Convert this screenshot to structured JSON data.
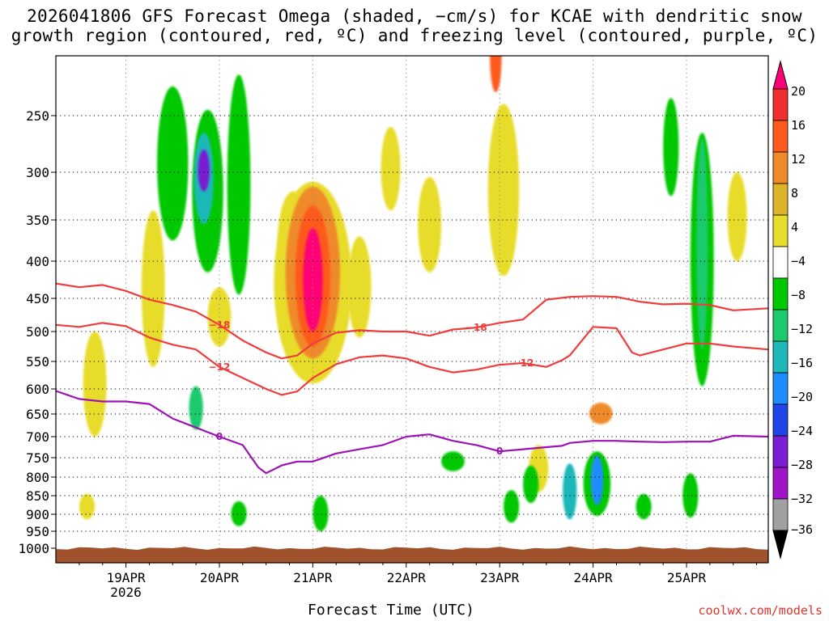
{
  "chart_data": {
    "type": "heatmap",
    "title_lines": [
      "2026041806 GFS Forecast Omega (shaded, −cm/s) for KCAE with dendritic snow",
      "growth region (contoured, red, ºC) and freezing level (contoured, purple, ºC)"
    ],
    "xlabel": "Forecast Time (UTC)",
    "credit": "coolwx.com/models",
    "x_unit": "hours after 2026-04-18 06Z",
    "xlim": [
      0,
      183
    ],
    "x_ticks": [
      {
        "hour": 18,
        "label": "19APR",
        "sublabel": "2026"
      },
      {
        "hour": 42,
        "label": "20APR"
      },
      {
        "hour": 66,
        "label": "21APR"
      },
      {
        "hour": 90,
        "label": "22APR"
      },
      {
        "hour": 114,
        "label": "23APR"
      },
      {
        "hour": 138,
        "label": "24APR"
      },
      {
        "hour": 162,
        "label": "25APR"
      }
    ],
    "y_ticks": [
      250,
      300,
      350,
      400,
      450,
      500,
      550,
      600,
      650,
      700,
      750,
      800,
      850,
      900,
      950,
      1000
    ],
    "ylim": [
      200,
      1025
    ],
    "colorbar": {
      "labels": [
        "20",
        "16",
        "12",
        "8",
        "4",
        "−4",
        "−8",
        "−12",
        "−16",
        "−20",
        "−24",
        "−28",
        "−32",
        "−36"
      ],
      "colors": [
        "#ff0077",
        "#ef2f2f",
        "#ff5a1e",
        "#ee8a2c",
        "#dcb42a",
        "#e8dc2c",
        "#ffffff",
        "#00c800",
        "#1cc96c",
        "#1eb8b8",
        "#1e8cff",
        "#1e46e6",
        "#7a1ed2",
        "#a014c8",
        "#a0a0a0",
        "#000000"
      ]
    },
    "contours": [
      {
        "name": "-18C",
        "label": "−18",
        "color": "#f03c3c",
        "x": [
          0,
          6,
          12,
          18,
          24,
          30,
          36,
          42,
          48,
          54,
          58,
          62,
          66,
          72,
          78,
          84,
          90,
          96,
          102,
          108,
          114,
          120,
          126,
          132,
          138,
          144,
          150,
          156,
          162,
          168,
          174,
          183
        ],
        "p": [
          430,
          435,
          432,
          440,
          452,
          460,
          470,
          490,
          515,
          535,
          545,
          540,
          520,
          502,
          498,
          500,
          500,
          507,
          497,
          494,
          487,
          482,
          452,
          448,
          447,
          448,
          455,
          459,
          458,
          460,
          468,
          465
        ]
      },
      {
        "name": "-12C",
        "label": "−12",
        "color": "#f03c3c",
        "x": [
          0,
          6,
          12,
          18,
          24,
          30,
          36,
          42,
          48,
          54,
          58,
          62,
          66,
          72,
          78,
          84,
          90,
          96,
          102,
          108,
          114,
          120,
          126,
          130,
          132,
          138,
          144,
          148,
          150,
          156,
          162,
          168,
          174,
          183
        ],
        "p": [
          490,
          493,
          487,
          492,
          510,
          522,
          530,
          560,
          580,
          600,
          612,
          605,
          580,
          555,
          543,
          540,
          545,
          560,
          570,
          565,
          556,
          553,
          560,
          548,
          540,
          493,
          495,
          535,
          540,
          530,
          520,
          520,
          525,
          530
        ]
      },
      {
        "name": "0C",
        "label": "0",
        "color": "#9c12b4",
        "x": [
          0,
          6,
          12,
          18,
          24,
          30,
          36,
          42,
          48,
          52,
          54,
          58,
          62,
          66,
          72,
          78,
          84,
          90,
          96,
          102,
          108,
          114,
          120,
          126,
          130,
          132,
          138,
          144,
          150,
          156,
          162,
          168,
          174,
          183
        ],
        "p": [
          604,
          620,
          625,
          625,
          630,
          660,
          680,
          700,
          720,
          775,
          790,
          770,
          760,
          760,
          740,
          730,
          720,
          700,
          695,
          710,
          720,
          735,
          730,
          725,
          722,
          715,
          710,
          710,
          712,
          713,
          712,
          712,
          698,
          700
        ]
      }
    ],
    "omega_blobs": [
      {
        "x": 66,
        "p": 430,
        "dx": 2.5,
        "dp": 140,
        "level": 20
      },
      {
        "x": 66,
        "p": 430,
        "dx": 4.5,
        "dp": 190,
        "level": 12
      },
      {
        "x": 66,
        "p": 430,
        "dx": 7,
        "dp": 230,
        "level": 8
      },
      {
        "x": 66,
        "p": 450,
        "dx": 10,
        "dp": 280,
        "level": 4
      },
      {
        "x": 38,
        "p": 300,
        "dx": 1.5,
        "dp": 40,
        "level": -28
      },
      {
        "x": 38,
        "p": 310,
        "dx": 2.5,
        "dp": 90,
        "level": -16
      },
      {
        "x": 39,
        "p": 330,
        "dx": 4,
        "dp": 170,
        "level": -8
      },
      {
        "x": 42,
        "p": 480,
        "dx": 3,
        "dp": 90,
        "level": 4
      },
      {
        "x": 36,
        "p": 640,
        "dx": 1.8,
        "dp": 90,
        "level": -12
      },
      {
        "x": 113,
        "p": 200,
        "dx": 1.5,
        "dp": 60,
        "level": 12
      },
      {
        "x": 115,
        "p": 330,
        "dx": 4,
        "dp": 180,
        "level": 4
      },
      {
        "x": 140,
        "p": 650,
        "dx": 3,
        "dp": 45,
        "level": 8
      },
      {
        "x": 139,
        "p": 810,
        "dx": 1.6,
        "dp": 130,
        "level": -20
      },
      {
        "x": 139,
        "p": 820,
        "dx": 3.5,
        "dp": 170,
        "level": -8
      },
      {
        "x": 132,
        "p": 840,
        "dx": 1.8,
        "dp": 150,
        "level": -16
      },
      {
        "x": 166,
        "p": 400,
        "dx": 1.5,
        "dp": 260,
        "level": -12
      },
      {
        "x": 166,
        "p": 430,
        "dx": 3,
        "dp": 330,
        "level": -8
      },
      {
        "x": 151,
        "p": 880,
        "dx": 2,
        "dp": 70,
        "level": -8
      },
      {
        "x": 163,
        "p": 850,
        "dx": 2,
        "dp": 120,
        "level": -8
      },
      {
        "x": 86,
        "p": 300,
        "dx": 2.5,
        "dp": 80,
        "level": 4
      },
      {
        "x": 96,
        "p": 360,
        "dx": 3,
        "dp": 110,
        "level": 4
      },
      {
        "x": 102,
        "p": 760,
        "dx": 3,
        "dp": 50,
        "level": -8
      },
      {
        "x": 10,
        "p": 600,
        "dx": 3,
        "dp": 200,
        "level": 4
      },
      {
        "x": 25,
        "p": 450,
        "dx": 3,
        "dp": 220,
        "level": 4
      },
      {
        "x": 47,
        "p": 330,
        "dx": 3,
        "dp": 230,
        "level": -8
      },
      {
        "x": 47,
        "p": 900,
        "dx": 2,
        "dp": 70,
        "level": -8
      },
      {
        "x": 30,
        "p": 300,
        "dx": 4,
        "dp": 150,
        "level": -8
      },
      {
        "x": 61,
        "p": 380,
        "dx": 4,
        "dp": 120,
        "level": 4
      },
      {
        "x": 78,
        "p": 440,
        "dx": 3,
        "dp": 140,
        "level": 4
      },
      {
        "x": 175,
        "p": 350,
        "dx": 2.5,
        "dp": 100,
        "level": 4
      },
      {
        "x": 158,
        "p": 280,
        "dx": 2,
        "dp": 90,
        "level": -8
      },
      {
        "x": 68,
        "p": 900,
        "dx": 2,
        "dp": 100,
        "level": -8
      },
      {
        "x": 8,
        "p": 880,
        "dx": 2,
        "dp": 70,
        "level": 4
      },
      {
        "x": 117,
        "p": 880,
        "dx": 2,
        "dp": 90,
        "level": -8
      },
      {
        "x": 122,
        "p": 820,
        "dx": 2,
        "dp": 100,
        "level": -8
      },
      {
        "x": 124,
        "p": 780,
        "dx": 2.5,
        "dp": 120,
        "level": 4
      }
    ]
  }
}
